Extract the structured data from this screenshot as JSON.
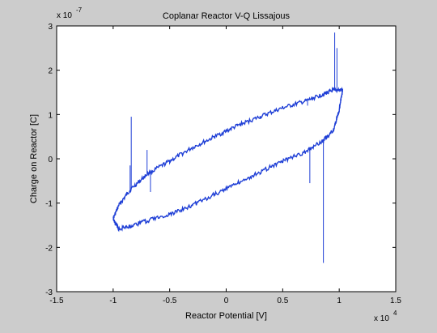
{
  "chart_data": {
    "type": "line",
    "title": "Coplanar Reactor V-Q Lissajous",
    "xlabel": "Reactor Potential [V]",
    "ylabel": "Charge on Reactor [C]",
    "x_multiplier": {
      "base": "x 10",
      "exponent": "4"
    },
    "y_multiplier": {
      "base": "x 10",
      "exponent": "-7"
    },
    "xlim": [
      -1.5,
      1.5
    ],
    "ylim": [
      -3,
      3
    ],
    "xticks": [
      "-1.5",
      "-1",
      "-0.5",
      "0",
      "0.5",
      "1",
      "1.5"
    ],
    "yticks": [
      "-3",
      "-2",
      "-1",
      "0",
      "1",
      "2",
      "3"
    ],
    "grid": false,
    "line_color": "#1f3fd6",
    "series": [
      {
        "upper_branch": {
          "x": [
            -1.0,
            -0.95,
            -0.85,
            -0.7,
            -0.5,
            -0.3,
            -0.1,
            0.1,
            0.3,
            0.5,
            0.7,
            0.85,
            0.95,
            1.03
          ],
          "y": [
            -1.35,
            -1.05,
            -0.7,
            -0.35,
            -0.05,
            0.25,
            0.5,
            0.75,
            0.95,
            1.15,
            1.3,
            1.45,
            1.55,
            1.55
          ]
        },
        "lower_branch": {
          "x": [
            1.03,
            1.0,
            0.95,
            0.85,
            0.7,
            0.5,
            0.3,
            0.1,
            -0.1,
            -0.3,
            -0.5,
            -0.7,
            -0.85,
            -0.95,
            -1.0
          ],
          "y": [
            1.55,
            1.1,
            0.65,
            0.4,
            0.15,
            -0.05,
            -0.3,
            -0.55,
            -0.8,
            -1.05,
            -1.25,
            -1.4,
            -1.52,
            -1.58,
            -1.35
          ]
        },
        "spikes": [
          {
            "x": 0.86,
            "y": -2.35
          },
          {
            "x": 0.96,
            "y": 2.85
          },
          {
            "x": 0.98,
            "y": 2.5
          },
          {
            "x": 0.72,
            "y": 1.2
          },
          {
            "x": 0.74,
            "y": -0.55
          },
          {
            "x": -0.7,
            "y": 0.2
          },
          {
            "x": -0.67,
            "y": -0.75
          },
          {
            "x": -0.85,
            "y": -0.15
          },
          {
            "x": -0.84,
            "y": 0.95
          }
        ]
      }
    ]
  }
}
